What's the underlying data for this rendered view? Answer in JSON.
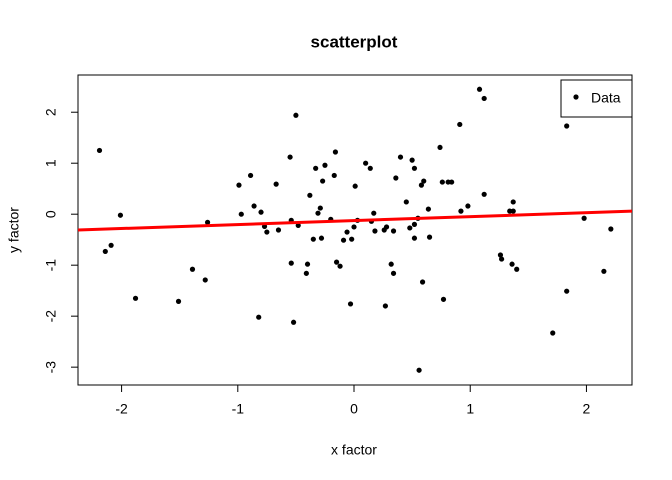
{
  "chart_data": {
    "type": "scatter",
    "title": "scatterplot",
    "x_label": "x factor",
    "y_label": "y factor",
    "xlim": [
      -2.375,
      2.392
    ],
    "ylim": [
      -3.35,
      2.73
    ],
    "xticks": [
      -2,
      -1,
      0,
      1,
      2
    ],
    "yticks": [
      -3,
      -2,
      -1,
      0,
      1,
      2
    ],
    "legend": "topright",
    "series": [
      {
        "name": "Data",
        "color": "#000000",
        "x": [
          -2.19,
          -2.14,
          -2.09,
          -2.01,
          -1.88,
          -1.51,
          -1.39,
          -1.28,
          -1.26,
          -0.99,
          -0.97,
          -0.89,
          -0.86,
          -0.82,
          -0.8,
          -0.77,
          -0.75,
          -0.67,
          -0.65,
          -0.55,
          -0.54,
          -0.54,
          -0.52,
          -0.5,
          -0.48,
          -0.41,
          -0.4,
          -0.38,
          -0.35,
          -0.33,
          -0.31,
          -0.29,
          -0.28,
          -0.27,
          -0.25,
          -0.2,
          -0.17,
          -0.16,
          -0.15,
          -0.12,
          -0.09,
          -0.06,
          -0.03,
          -0.02,
          0.0,
          0.01,
          0.03,
          0.1,
          0.14,
          0.15,
          0.17,
          0.18,
          0.26,
          0.27,
          0.28,
          0.32,
          0.34,
          0.34,
          0.36,
          0.4,
          0.45,
          0.48,
          0.5,
          0.52,
          0.52,
          0.52,
          0.55,
          0.56,
          0.58,
          0.59,
          0.6,
          0.64,
          0.65,
          0.74,
          0.76,
          0.77,
          0.81,
          0.84,
          0.91,
          0.92,
          0.98,
          1.08,
          1.12,
          1.12,
          1.26,
          1.27,
          1.34,
          1.37,
          1.37,
          1.36,
          1.4,
          1.71,
          1.83,
          1.83,
          1.98,
          2.15,
          2.21
        ],
        "values": [
          1.25,
          -0.73,
          -0.61,
          -0.02,
          -1.65,
          -1.71,
          -1.08,
          -1.29,
          -0.16,
          0.57,
          0.0,
          0.76,
          0.16,
          -2.02,
          0.04,
          -0.24,
          -0.35,
          0.59,
          -0.31,
          1.12,
          -0.12,
          -0.96,
          -2.12,
          1.94,
          -0.22,
          -1.16,
          -0.98,
          0.37,
          -0.49,
          0.9,
          0.02,
          0.12,
          -0.47,
          0.65,
          0.96,
          -0.1,
          0.76,
          1.22,
          -0.94,
          -1.02,
          -0.51,
          -0.35,
          -1.76,
          -0.49,
          -0.25,
          0.55,
          -0.12,
          1.0,
          0.9,
          -0.14,
          0.02,
          -0.33,
          -0.31,
          -1.8,
          -0.25,
          -0.98,
          -0.33,
          -1.16,
          0.71,
          1.12,
          0.24,
          -0.27,
          1.06,
          -0.47,
          0.9,
          -0.2,
          -0.08,
          -3.06,
          0.57,
          -1.33,
          0.65,
          0.1,
          -0.45,
          1.31,
          0.63,
          -1.67,
          0.63,
          0.63,
          1.76,
          0.06,
          0.16,
          2.45,
          2.27,
          0.39,
          -0.8,
          -0.88,
          0.06,
          0.06,
          0.24,
          -0.98,
          -1.08,
          -2.33,
          1.73,
          -1.51,
          -0.08,
          -1.12,
          -0.29
        ]
      }
    ],
    "fit": {
      "color": "#ff0000",
      "x": [
        -2.375,
        2.392
      ],
      "values": [
        -0.31,
        0.06
      ]
    }
  }
}
